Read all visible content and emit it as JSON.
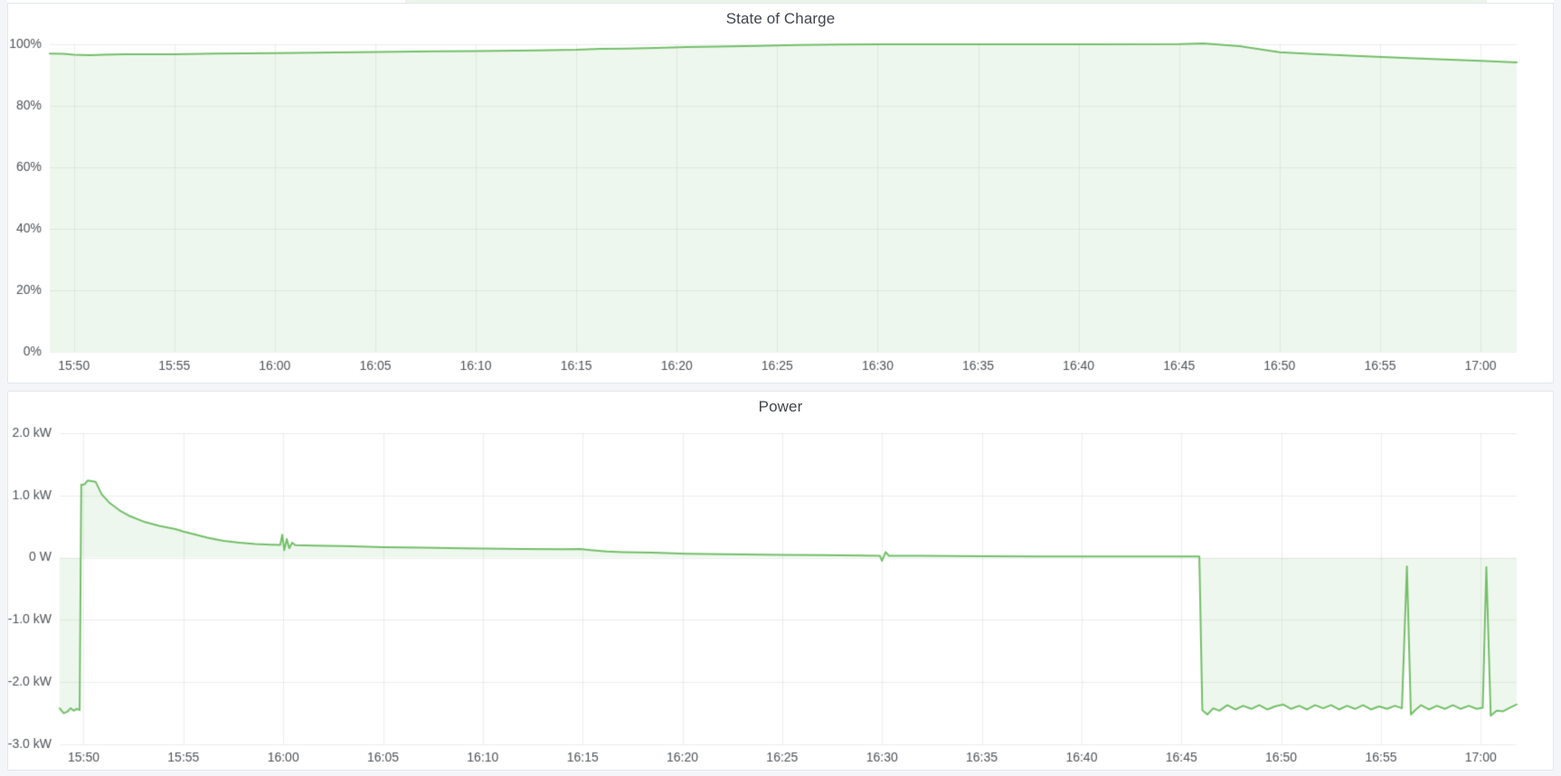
{
  "page": {
    "background_color": "#f4f5f9",
    "panel_background": "#ffffff",
    "panel_border_color": "#e2e6ee",
    "title_color": "#41454c",
    "axis_text_color": "#4e5358",
    "grid_color": "rgba(30,40,55,0.08)",
    "series_line_color": "#73bf69",
    "series_fill_color": "rgba(115,191,105,0.12)"
  },
  "panels": [
    {
      "title": "State of Charge"
    },
    {
      "title": "Power"
    }
  ],
  "chart_data": [
    {
      "type": "area",
      "title": "State of Charge",
      "xlabel": "",
      "ylabel": "",
      "unit": "%",
      "grid": true,
      "legend": "none",
      "x_axis_minutes_after_1500": [
        48.8,
        121.8
      ],
      "x_tick_labels": [
        "15:50",
        "15:55",
        "16:00",
        "16:05",
        "16:10",
        "16:15",
        "16:20",
        "16:25",
        "16:30",
        "16:35",
        "16:40",
        "16:45",
        "16:50",
        "16:55",
        "17:00"
      ],
      "ylim": [
        0,
        100
      ],
      "y_ticks": [
        {
          "value": 100,
          "label": "100%"
        },
        {
          "value": 80,
          "label": "80%"
        },
        {
          "value": 60,
          "label": "60%"
        },
        {
          "value": 40,
          "label": "40%"
        },
        {
          "value": 20,
          "label": "20%"
        },
        {
          "value": 0,
          "label": "0%"
        }
      ],
      "fill_to_value": 0,
      "series": [
        {
          "name": "State of Charge",
          "color": "#73bf69",
          "points_t_min_after_1500_vs_percent": [
            [
              48.8,
              97.0
            ],
            [
              49.5,
              96.9
            ],
            [
              50.0,
              96.6
            ],
            [
              50.8,
              96.5
            ],
            [
              51.5,
              96.6
            ],
            [
              52.5,
              96.8
            ],
            [
              55.0,
              96.8
            ],
            [
              57.0,
              97.0
            ],
            [
              60.0,
              97.1
            ],
            [
              62.0,
              97.3
            ],
            [
              65.0,
              97.5
            ],
            [
              68.0,
              97.7
            ],
            [
              70.0,
              97.8
            ],
            [
              73.0,
              98.0
            ],
            [
              75.0,
              98.2
            ],
            [
              76.2,
              98.5
            ],
            [
              77.5,
              98.6
            ],
            [
              79.0,
              98.8
            ],
            [
              80.5,
              99.1
            ],
            [
              82.0,
              99.3
            ],
            [
              84.0,
              99.5
            ],
            [
              86.0,
              99.8
            ],
            [
              88.0,
              99.9
            ],
            [
              90.0,
              100.0
            ],
            [
              95.0,
              100.0
            ],
            [
              100.0,
              100.0
            ],
            [
              105.0,
              100.05
            ],
            [
              106.2,
              100.3
            ],
            [
              108.0,
              99.4
            ],
            [
              110.0,
              97.4
            ],
            [
              111.5,
              96.9
            ],
            [
              114.0,
              96.2
            ],
            [
              117.0,
              95.4
            ],
            [
              120.0,
              94.6
            ],
            [
              121.8,
              94.1
            ]
          ]
        }
      ]
    },
    {
      "type": "area",
      "title": "Power",
      "xlabel": "",
      "ylabel": "",
      "unit": "kW",
      "grid": true,
      "legend": "none",
      "x_axis_minutes_after_1500": [
        48.8,
        121.8
      ],
      "x_tick_labels": [
        "15:50",
        "15:55",
        "16:00",
        "16:05",
        "16:10",
        "16:15",
        "16:20",
        "16:25",
        "16:30",
        "16:35",
        "16:40",
        "16:45",
        "16:50",
        "16:55",
        "17:00"
      ],
      "ylim": [
        -3,
        2
      ],
      "y_ticks": [
        {
          "value": 2,
          "label": "2.0 kW"
        },
        {
          "value": 1,
          "label": "1.0 kW"
        },
        {
          "value": 0,
          "label": "0 W"
        },
        {
          "value": -1,
          "label": "-1.0 kW"
        },
        {
          "value": -2,
          "label": "-2.0 kW"
        },
        {
          "value": -3,
          "label": "-3.0 kW"
        }
      ],
      "fill_to_value": 0,
      "series": [
        {
          "name": "Power",
          "color": "#73bf69",
          "points_t_min_after_1500_vs_kw": [
            [
              48.8,
              -2.42
            ],
            [
              49.0,
              -2.5
            ],
            [
              49.2,
              -2.47
            ],
            [
              49.35,
              -2.42
            ],
            [
              49.5,
              -2.46
            ],
            [
              49.65,
              -2.43
            ],
            [
              49.8,
              -2.45
            ],
            [
              49.88,
              1.17
            ],
            [
              50.05,
              1.18
            ],
            [
              50.2,
              1.24
            ],
            [
              50.6,
              1.22
            ],
            [
              50.9,
              1.02
            ],
            [
              51.3,
              0.88
            ],
            [
              51.8,
              0.76
            ],
            [
              52.3,
              0.67
            ],
            [
              53.0,
              0.58
            ],
            [
              53.8,
              0.51
            ],
            [
              54.6,
              0.46
            ],
            [
              55.0,
              0.42
            ],
            [
              55.5,
              0.38
            ],
            [
              56.2,
              0.32
            ],
            [
              57.0,
              0.27
            ],
            [
              57.8,
              0.24
            ],
            [
              58.6,
              0.22
            ],
            [
              59.4,
              0.21
            ],
            [
              59.85,
              0.205
            ],
            [
              59.95,
              0.37
            ],
            [
              60.05,
              0.12
            ],
            [
              60.18,
              0.3
            ],
            [
              60.3,
              0.15
            ],
            [
              60.45,
              0.24
            ],
            [
              60.6,
              0.2
            ],
            [
              61.5,
              0.195
            ],
            [
              63.0,
              0.185
            ],
            [
              65.0,
              0.17
            ],
            [
              67.0,
              0.16
            ],
            [
              69.0,
              0.15
            ],
            [
              70.0,
              0.145
            ],
            [
              72.0,
              0.14
            ],
            [
              74.0,
              0.135
            ],
            [
              74.9,
              0.14
            ],
            [
              75.4,
              0.12
            ],
            [
              76.2,
              0.1
            ],
            [
              77.0,
              0.09
            ],
            [
              78.5,
              0.08
            ],
            [
              80.2,
              0.065
            ],
            [
              82.0,
              0.055
            ],
            [
              85.0,
              0.045
            ],
            [
              87.0,
              0.04
            ],
            [
              89.0,
              0.035
            ],
            [
              89.9,
              0.03
            ],
            [
              90.0,
              -0.05
            ],
            [
              90.18,
              0.09
            ],
            [
              90.35,
              0.03
            ],
            [
              92.0,
              0.03
            ],
            [
              95.0,
              0.025
            ],
            [
              98.0,
              0.02
            ],
            [
              102.0,
              0.02
            ],
            [
              105.9,
              0.02
            ],
            [
              106.05,
              -2.45
            ],
            [
              106.3,
              -2.52
            ],
            [
              106.6,
              -2.42
            ],
            [
              106.9,
              -2.46
            ],
            [
              107.3,
              -2.37
            ],
            [
              107.7,
              -2.44
            ],
            [
              108.1,
              -2.38
            ],
            [
              108.5,
              -2.43
            ],
            [
              108.9,
              -2.37
            ],
            [
              109.3,
              -2.44
            ],
            [
              109.7,
              -2.39
            ],
            [
              110.1,
              -2.36
            ],
            [
              110.5,
              -2.43
            ],
            [
              110.9,
              -2.38
            ],
            [
              111.3,
              -2.44
            ],
            [
              111.7,
              -2.37
            ],
            [
              112.1,
              -2.42
            ],
            [
              112.5,
              -2.37
            ],
            [
              112.9,
              -2.44
            ],
            [
              113.3,
              -2.38
            ],
            [
              113.7,
              -2.43
            ],
            [
              114.1,
              -2.37
            ],
            [
              114.5,
              -2.44
            ],
            [
              114.9,
              -2.39
            ],
            [
              115.3,
              -2.43
            ],
            [
              115.7,
              -2.38
            ],
            [
              116.05,
              -2.42
            ],
            [
              116.3,
              -0.14
            ],
            [
              116.5,
              -2.52
            ],
            [
              116.75,
              -2.44
            ],
            [
              117.0,
              -2.37
            ],
            [
              117.4,
              -2.44
            ],
            [
              117.8,
              -2.38
            ],
            [
              118.2,
              -2.43
            ],
            [
              118.6,
              -2.37
            ],
            [
              119.0,
              -2.43
            ],
            [
              119.4,
              -2.38
            ],
            [
              119.8,
              -2.43
            ],
            [
              120.1,
              -2.41
            ],
            [
              120.28,
              -0.15
            ],
            [
              120.5,
              -2.54
            ],
            [
              120.8,
              -2.46
            ],
            [
              121.1,
              -2.47
            ],
            [
              121.4,
              -2.42
            ],
            [
              121.8,
              -2.36
            ]
          ]
        }
      ]
    }
  ]
}
